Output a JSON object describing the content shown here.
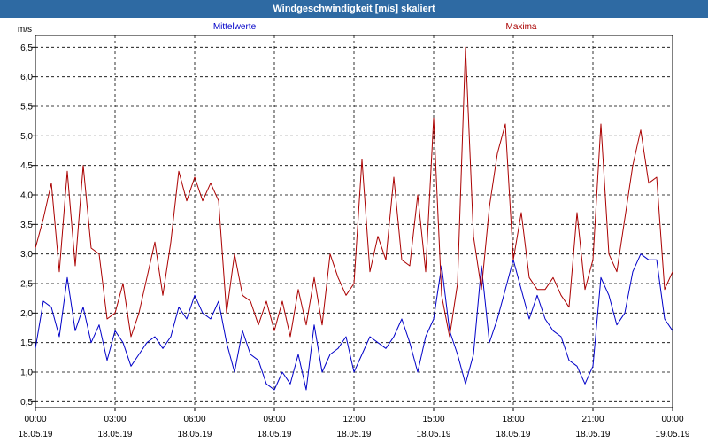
{
  "window": {
    "title": "Windgeschwindigkeit [m/s] skaliert"
  },
  "chart_data": {
    "type": "line",
    "title": "Windgeschwindigkeit [m/s] skaliert",
    "ylabel": "m/s",
    "ylim": [
      0.4,
      6.7
    ],
    "grid": true,
    "legend": {
      "placement": "top",
      "entries": [
        "Mittelwerte",
        "Maxima"
      ]
    },
    "y_ticks": [
      "0,5",
      "1,0",
      "1,5",
      "2,0",
      "2,5",
      "3,0",
      "3,5",
      "4,0",
      "4,5",
      "5,0",
      "5,5",
      "6,0",
      "6,5"
    ],
    "y_tick_values": [
      0.5,
      1.0,
      1.5,
      2.0,
      2.5,
      3.0,
      3.5,
      4.0,
      4.5,
      5.0,
      5.5,
      6.0,
      6.5
    ],
    "x_ticks": [
      {
        "time": "00:00",
        "date": "18.05.19"
      },
      {
        "time": "03:00",
        "date": "18.05.19"
      },
      {
        "time": "06:00",
        "date": "18.05.19"
      },
      {
        "time": "09:00",
        "date": "18.05.19"
      },
      {
        "time": "12:00",
        "date": "18.05.19"
      },
      {
        "time": "15:00",
        "date": "18.05.19"
      },
      {
        "time": "18:00",
        "date": "18.05.19"
      },
      {
        "time": "21:00",
        "date": "18.05.19"
      },
      {
        "time": "00:00",
        "date": "19.05.19"
      }
    ],
    "x_unit": "hours since 18.05.19 00:00",
    "x": [
      0,
      0.3,
      0.6,
      0.9,
      1.2,
      1.5,
      1.8,
      2.1,
      2.4,
      2.7,
      3.0,
      3.3,
      3.6,
      3.9,
      4.2,
      4.5,
      4.8,
      5.1,
      5.4,
      5.7,
      6.0,
      6.3,
      6.6,
      6.9,
      7.2,
      7.5,
      7.8,
      8.1,
      8.4,
      8.7,
      9.0,
      9.3,
      9.6,
      9.9,
      10.2,
      10.5,
      10.8,
      11.1,
      11.4,
      11.7,
      12.0,
      12.3,
      12.6,
      12.9,
      13.2,
      13.5,
      13.8,
      14.1,
      14.4,
      14.7,
      15.0,
      15.3,
      15.6,
      15.9,
      16.2,
      16.5,
      16.8,
      17.1,
      17.4,
      17.7,
      18.0,
      18.3,
      18.6,
      18.9,
      19.2,
      19.5,
      19.8,
      20.1,
      20.4,
      20.7,
      21.0,
      21.3,
      21.6,
      21.9,
      22.2,
      22.5,
      22.8,
      23.1,
      23.4,
      23.7,
      24.0
    ],
    "series": [
      {
        "name": "Mittelwerte",
        "color": "#0000c8",
        "values": [
          1.4,
          2.2,
          2.1,
          1.6,
          2.6,
          1.7,
          2.1,
          1.5,
          1.8,
          1.2,
          1.7,
          1.5,
          1.1,
          1.3,
          1.5,
          1.6,
          1.4,
          1.6,
          2.1,
          1.9,
          2.3,
          2.0,
          1.9,
          2.2,
          1.5,
          1.0,
          1.7,
          1.3,
          1.2,
          0.8,
          0.7,
          1.0,
          0.8,
          1.3,
          0.7,
          1.8,
          1.0,
          1.3,
          1.4,
          1.6,
          1.0,
          1.3,
          1.6,
          1.5,
          1.4,
          1.6,
          1.9,
          1.5,
          1.0,
          1.6,
          1.9,
          2.8,
          1.7,
          1.3,
          0.8,
          1.3,
          2.8,
          1.5,
          1.9,
          2.4,
          2.9,
          2.4,
          1.9,
          2.3,
          1.9,
          1.7,
          1.6,
          1.2,
          1.1,
          0.8,
          1.1,
          2.6,
          2.3,
          1.8,
          2.0,
          2.7,
          3.0,
          2.9,
          2.9,
          1.9,
          1.7
        ]
      },
      {
        "name": "Maxima",
        "color": "#aa0000",
        "values": [
          3.1,
          3.6,
          4.2,
          2.7,
          4.4,
          2.8,
          4.5,
          3.1,
          3.0,
          1.9,
          2.0,
          2.5,
          1.6,
          2.0,
          2.6,
          3.2,
          2.3,
          3.2,
          4.4,
          3.9,
          4.3,
          3.9,
          4.2,
          3.9,
          2.0,
          3.0,
          2.3,
          2.2,
          1.8,
          2.2,
          1.7,
          2.2,
          1.6,
          2.4,
          1.8,
          2.6,
          1.8,
          3.0,
          2.6,
          2.3,
          2.5,
          4.6,
          2.7,
          3.3,
          2.9,
          4.3,
          2.9,
          2.8,
          4.0,
          2.7,
          5.3,
          2.3,
          1.6,
          2.5,
          6.5,
          3.3,
          2.4,
          3.8,
          4.7,
          5.2,
          2.9,
          3.7,
          2.6,
          2.4,
          2.4,
          2.6,
          2.3,
          2.1,
          3.7,
          2.4,
          2.9,
          5.2,
          3.0,
          2.7,
          3.6,
          4.5,
          5.1,
          4.2,
          4.3,
          2.4,
          2.7
        ]
      }
    ]
  }
}
